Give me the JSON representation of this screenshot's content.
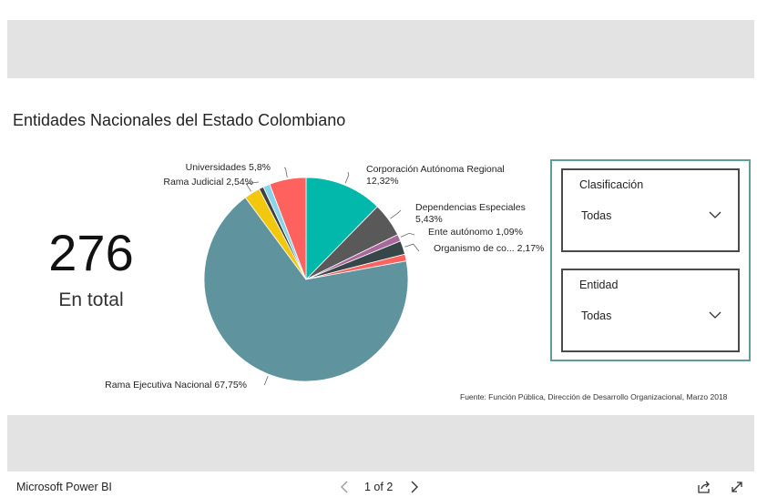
{
  "report": {
    "title": "Entidades Nacionales del Estado Colombiano",
    "source": "Fuente: Función Pública, Dirección de Desarrollo Organizacional, Marzo 2018"
  },
  "kpi": {
    "value": "276",
    "label": "En total"
  },
  "chart_data": {
    "type": "pie",
    "title": "",
    "slices": [
      {
        "label": "Corporación Autónoma Regional 12,32%",
        "value": 12.32,
        "color": "#01b8aa"
      },
      {
        "label": "Dependencias Especiales 5,43%",
        "value": 5.43,
        "color": "#595959"
      },
      {
        "label": "Ente autónomo 1,09%",
        "value": 1.09,
        "color": "#a66999"
      },
      {
        "label": "Organismo de co... 2,17%",
        "value": 2.17,
        "color": "#374649"
      },
      {
        "label": "",
        "value": 1.09,
        "color": "#fd625e"
      },
      {
        "label": "Rama Ejecutiva Nacional 67,75%",
        "value": 67.75,
        "color": "#5f939d"
      },
      {
        "label": "Rama Judicial 2,54%",
        "value": 2.54,
        "color": "#f2c80f"
      },
      {
        "label": "",
        "value": 0.72,
        "color": "#404040"
      },
      {
        "label": "",
        "value": 1.09,
        "color": "#8ad4eb"
      },
      {
        "label": "Universidades 5,8%",
        "value": 5.8,
        "color": "#fd625e"
      }
    ]
  },
  "slicers": {
    "clasificacion": {
      "title": "Clasificación",
      "value": "Todas"
    },
    "entidad": {
      "title": "Entidad",
      "value": "Todas"
    }
  },
  "footer": {
    "brand": "Microsoft Power BI",
    "page_indicator": "1 of 2"
  }
}
